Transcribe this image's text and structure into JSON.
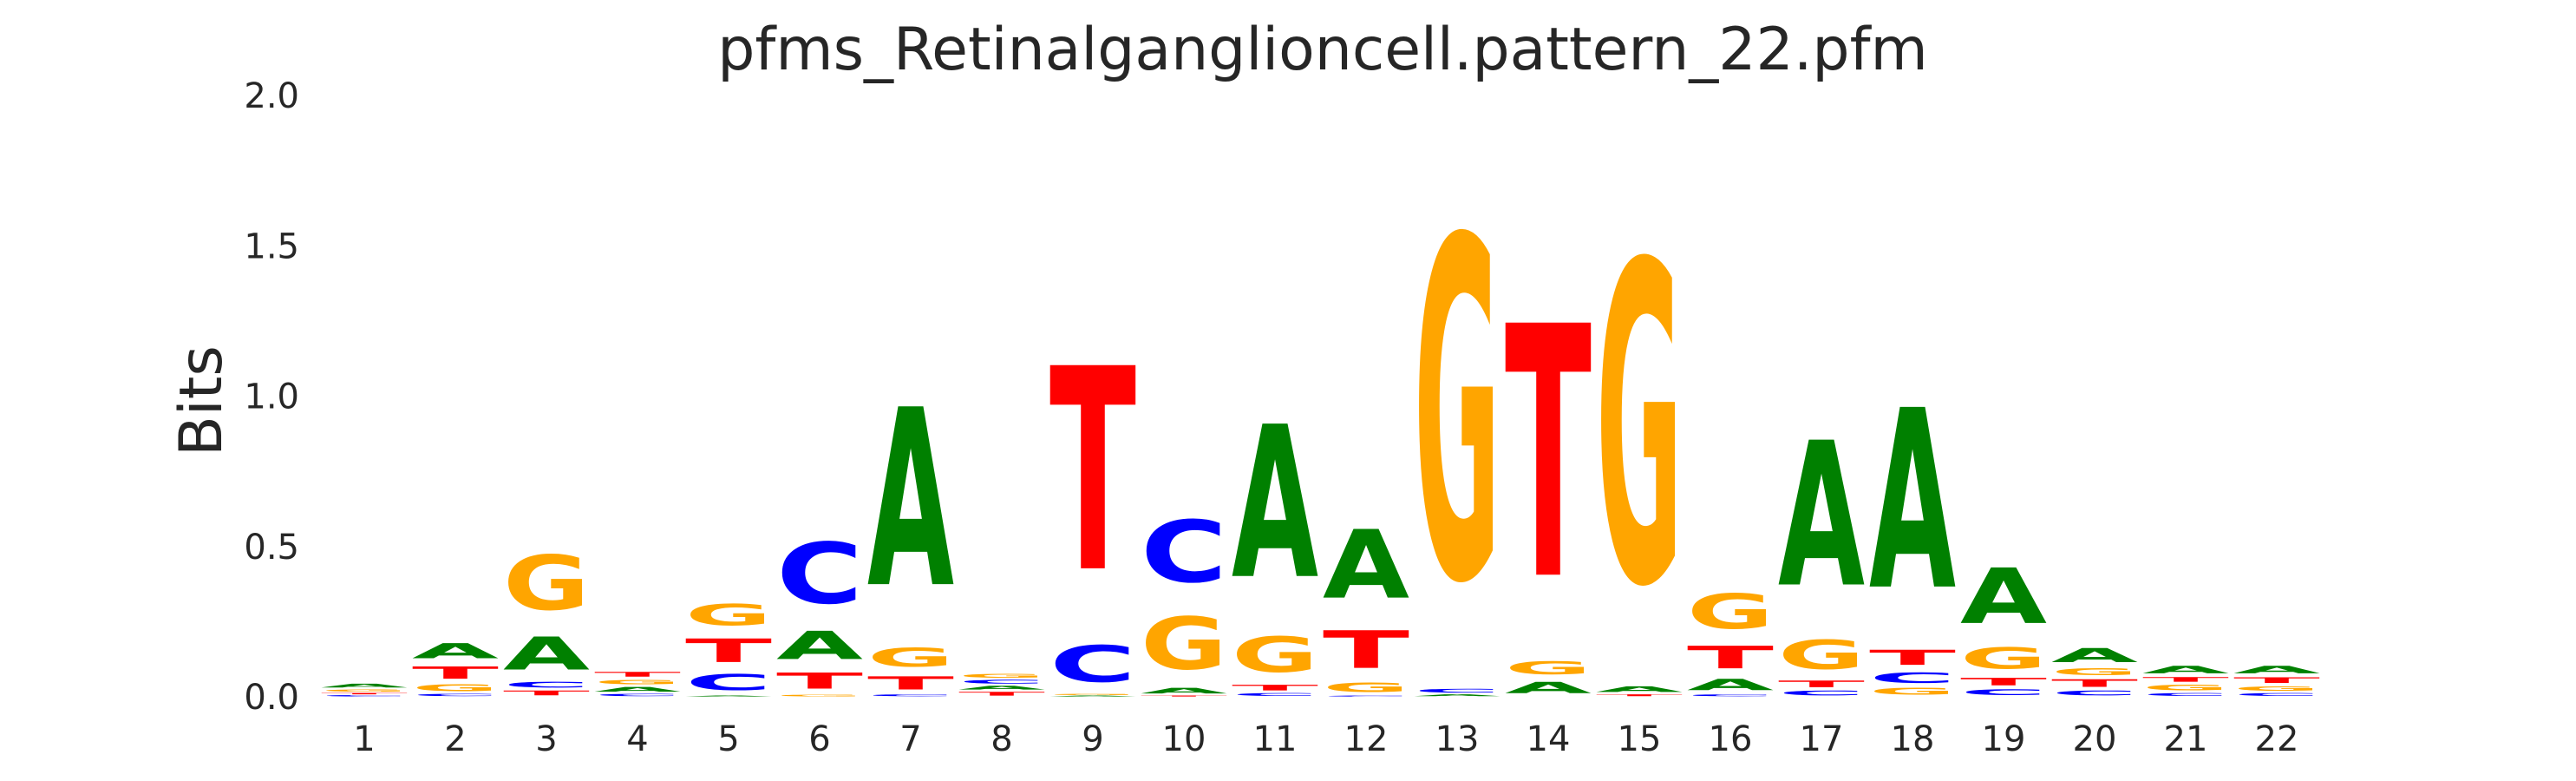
{
  "chart_data": {
    "type": "sequence-logo",
    "title": "pfms_Retinalganglioncell.pattern_22.pfm",
    "ylabel": "Bits",
    "xlabel": "",
    "ylim": [
      0,
      2.0
    ],
    "yticks": [
      "0.0",
      "0.5",
      "1.0",
      "1.5",
      "2.0"
    ],
    "ytick_values": [
      0,
      0.5,
      1.0,
      1.5,
      2.0
    ],
    "grid": false,
    "colors": {
      "A": "#008000",
      "C": "#0000ff",
      "G": "#ffa500",
      "T": "#ff0000"
    },
    "positions": [
      {
        "label": "1",
        "letters": [
          [
            "C",
            0.007
          ],
          [
            "T",
            0.007
          ],
          [
            "G",
            0.013
          ],
          [
            "A",
            0.02
          ]
        ]
      },
      {
        "label": "2",
        "letters": [
          [
            "C",
            0.012
          ],
          [
            "G",
            0.035
          ],
          [
            "T",
            0.065
          ],
          [
            "A",
            0.08
          ]
        ]
      },
      {
        "label": "3",
        "letters": [
          [
            "T",
            0.025
          ],
          [
            "C",
            0.03
          ],
          [
            "A",
            0.175
          ],
          [
            "G",
            0.29
          ]
        ]
      },
      {
        "label": "4",
        "letters": [
          [
            "C",
            0.012
          ],
          [
            "A",
            0.025
          ],
          [
            "G",
            0.025
          ],
          [
            "T",
            0.025
          ]
        ]
      },
      {
        "label": "5",
        "letters": [
          [
            "A",
            0.005
          ],
          [
            "C",
            0.085
          ],
          [
            "T",
            0.125
          ],
          [
            "G",
            0.115
          ]
        ]
      },
      {
        "label": "6",
        "letters": [
          [
            "G",
            0.01
          ],
          [
            "T",
            0.085
          ],
          [
            "A",
            0.15
          ],
          [
            "C",
            0.325
          ]
        ]
      },
      {
        "label": "7",
        "letters": [
          [
            "C",
            0.01
          ],
          [
            "T",
            0.07
          ],
          [
            "G",
            0.1
          ],
          [
            "A",
            0.945
          ]
        ]
      },
      {
        "label": "8",
        "letters": [
          [
            "T",
            0.02
          ],
          [
            "A",
            0.02
          ],
          [
            "C",
            0.02
          ],
          [
            "G",
            0.02
          ]
        ]
      },
      {
        "label": "9",
        "letters": [
          [
            "A",
            0.005
          ],
          [
            "G",
            0.005
          ],
          [
            "C",
            0.195
          ],
          [
            "T",
            1.08
          ]
        ]
      },
      {
        "label": "10",
        "letters": [
          [
            "T",
            0.005
          ],
          [
            "A",
            0.03
          ],
          [
            "G",
            0.28
          ],
          [
            "C",
            0.33
          ]
        ]
      },
      {
        "label": "11",
        "letters": [
          [
            "C",
            0.015
          ],
          [
            "T",
            0.03
          ],
          [
            "G",
            0.19
          ],
          [
            "A",
            0.81
          ]
        ]
      },
      {
        "label": "12",
        "letters": [
          [
            "C",
            0.005
          ],
          [
            "G",
            0.05
          ],
          [
            "T",
            0.2
          ],
          [
            "A",
            0.365
          ]
        ]
      },
      {
        "label": "13",
        "letters": [
          [
            "A",
            0.01
          ],
          [
            "C",
            0.02
          ],
          [
            "G",
            1.81
          ]
        ]
      },
      {
        "label": "14",
        "letters": [
          [
            "A",
            0.06
          ],
          [
            "G",
            0.07
          ],
          [
            "T",
            1.34
          ]
        ]
      },
      {
        "label": "15",
        "letters": [
          [
            "T",
            0.01
          ],
          [
            "A",
            0.03
          ],
          [
            "G",
            1.7
          ]
        ]
      },
      {
        "label": "16",
        "letters": [
          [
            "C",
            0.01
          ],
          [
            "A",
            0.06
          ],
          [
            "T",
            0.12
          ],
          [
            "G",
            0.185
          ]
        ]
      },
      {
        "label": "17",
        "letters": [
          [
            "C",
            0.025
          ],
          [
            "T",
            0.035
          ],
          [
            "G",
            0.155
          ],
          [
            "A",
            0.77
          ]
        ]
      },
      {
        "label": "18",
        "letters": [
          [
            "G",
            0.035
          ],
          [
            "C",
            0.055
          ],
          [
            "T",
            0.08
          ],
          [
            "A",
            0.955
          ]
        ]
      },
      {
        "label": "19",
        "letters": [
          [
            "C",
            0.03
          ],
          [
            "T",
            0.04
          ],
          [
            "G",
            0.115
          ],
          [
            "A",
            0.295
          ]
        ]
      },
      {
        "label": "20",
        "letters": [
          [
            "C",
            0.025
          ],
          [
            "T",
            0.04
          ],
          [
            "G",
            0.035
          ],
          [
            "A",
            0.075
          ]
        ]
      },
      {
        "label": "21",
        "letters": [
          [
            "C",
            0.015
          ],
          [
            "G",
            0.03
          ],
          [
            "T",
            0.025
          ],
          [
            "A",
            0.04
          ]
        ]
      },
      {
        "label": "22",
        "letters": [
          [
            "C",
            0.015
          ],
          [
            "G",
            0.025
          ],
          [
            "T",
            0.03
          ],
          [
            "A",
            0.04
          ]
        ]
      }
    ]
  }
}
